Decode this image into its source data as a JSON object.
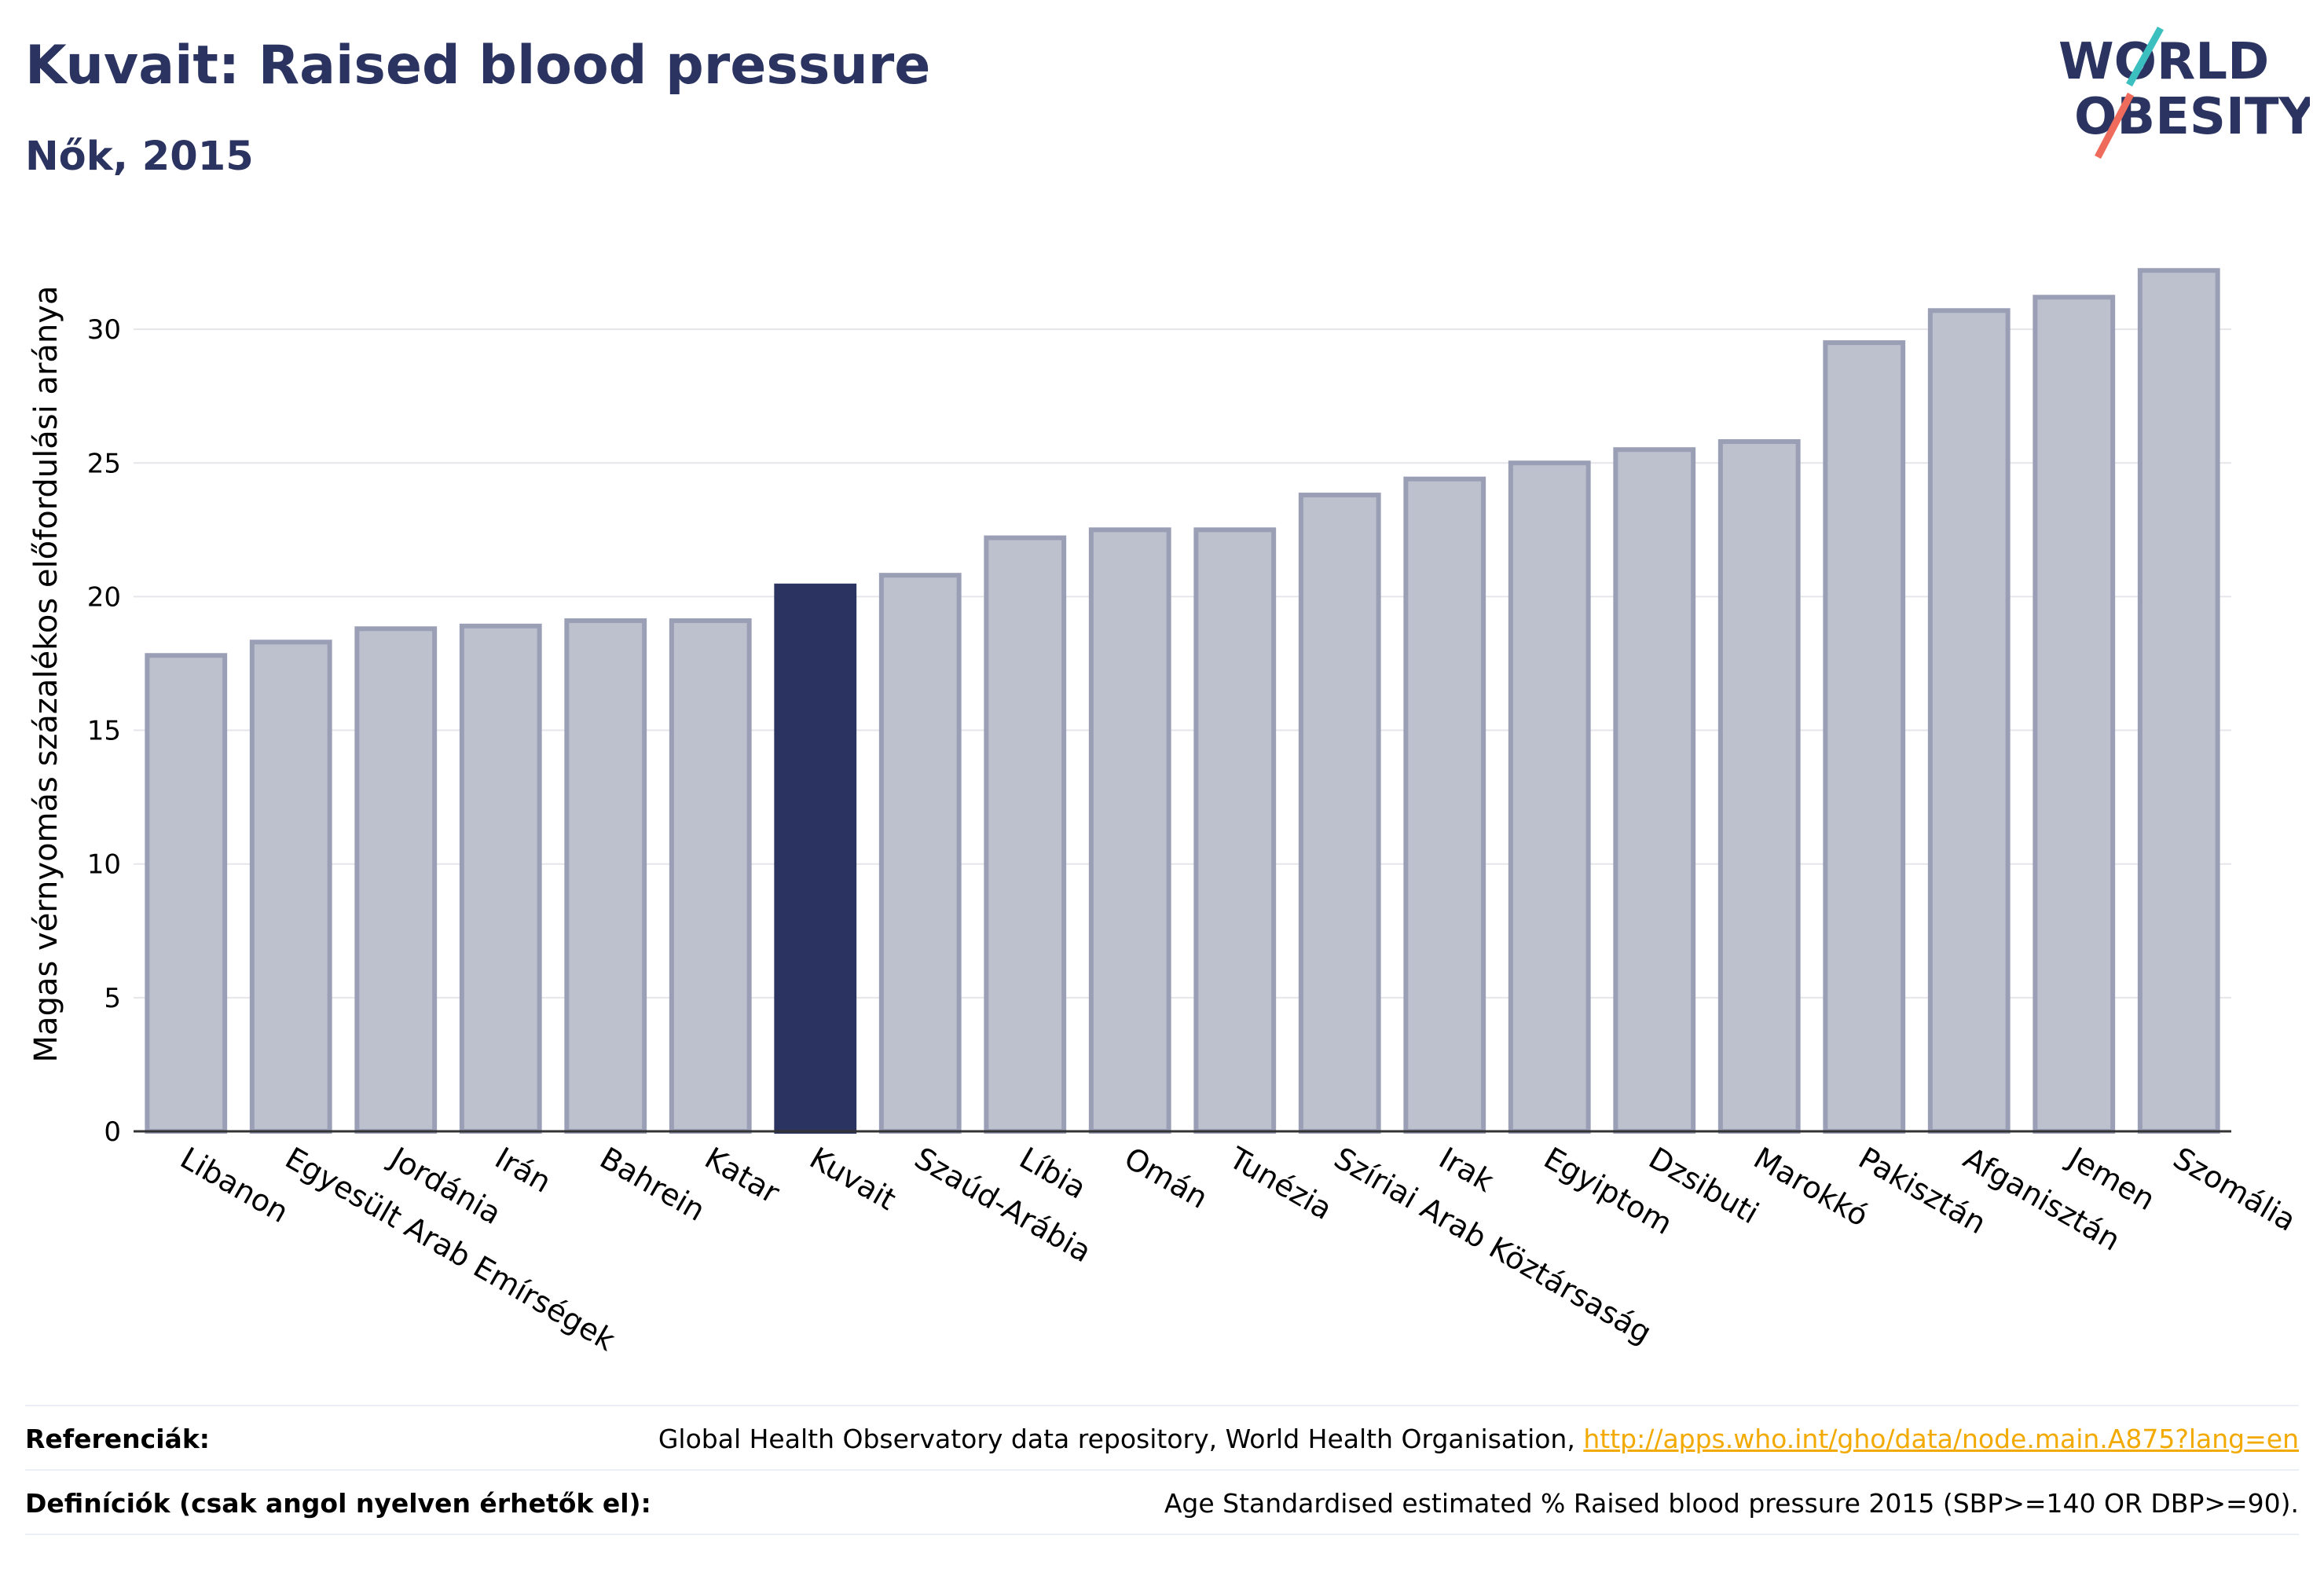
{
  "header": {
    "title": "Kuvait: Raised blood pressure",
    "subtitle": "Nők, 2015"
  },
  "logo": {
    "line1": "WORLD",
    "line2": "OBESITY"
  },
  "colors": {
    "highlight": "#2b3461",
    "bar_fill": "#bdc0cd",
    "bar_stroke": "#9a9fb6",
    "grid": "#e6e6ea",
    "logo_teal": "#3bbfbf",
    "logo_coral": "#ef6b5b",
    "link": "#f2a900"
  },
  "chart_data": {
    "type": "bar",
    "highlight": "Kuvait",
    "categories": [
      "Libanon",
      "Egyesült Arab Emírségek",
      "Jordánia",
      "Irán",
      "Bahrein",
      "Katar",
      "Kuvait",
      "Szaúd-Arábia",
      "Líbia",
      "Omán",
      "Tunézia",
      "Szíriai Arab Köztársaság",
      "Irak",
      "Egyiptom",
      "Dzsibuti",
      "Marokkó",
      "Pakisztán",
      "Afganisztán",
      "Jemen",
      "Szomália"
    ],
    "values": [
      17.8,
      18.3,
      18.8,
      18.9,
      19.1,
      19.1,
      20.4,
      20.8,
      22.2,
      22.5,
      22.5,
      23.8,
      24.4,
      25.0,
      25.5,
      25.8,
      29.5,
      30.7,
      31.2,
      32.2
    ],
    "ylabel": "Magas vérnyomás százalékos előfordulási aránya",
    "yticks": [
      "0",
      "5",
      "10",
      "15",
      "20",
      "25",
      "30"
    ],
    "ylim": [
      0,
      33.5
    ],
    "grid": true
  },
  "footer": {
    "references_label": "Referenciák:",
    "references_text": "Global Health Observatory data repository, World Health Organisation,",
    "references_link": "http://apps.who.int/gho/data/node.main.A875?lang=en",
    "definitions_label": "Definíciók (csak angol nyelven érhetők el):",
    "definitions_text": "Age Standardised estimated % Raised blood pressure 2015 (SBP>=140 OR DBP>=90)."
  }
}
